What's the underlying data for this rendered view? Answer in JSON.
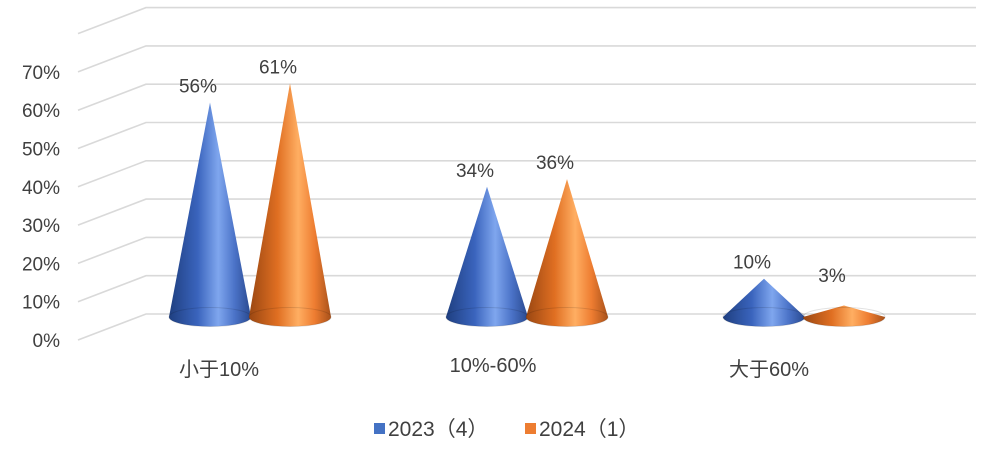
{
  "chart_data": {
    "type": "bar",
    "shape": "3d-cone",
    "categories": [
      "小于10%",
      "10%-60%",
      "大于60%"
    ],
    "series": [
      {
        "name": "2023（4）",
        "values": [
          56,
          34,
          10
        ],
        "labels": [
          "56%",
          "34%",
          "10%"
        ],
        "color": "#4472C4"
      },
      {
        "name": "2024（1）",
        "values": [
          61,
          36,
          3
        ],
        "labels": [
          "61%",
          "36%",
          "3%"
        ],
        "color": "#ED7D31"
      }
    ],
    "y_ticks": [
      "0%",
      "10%",
      "20%",
      "30%",
      "40%",
      "50%",
      "60%",
      "70%"
    ],
    "ylim": [
      0,
      70
    ],
    "grid": true,
    "legend_position": "bottom"
  }
}
